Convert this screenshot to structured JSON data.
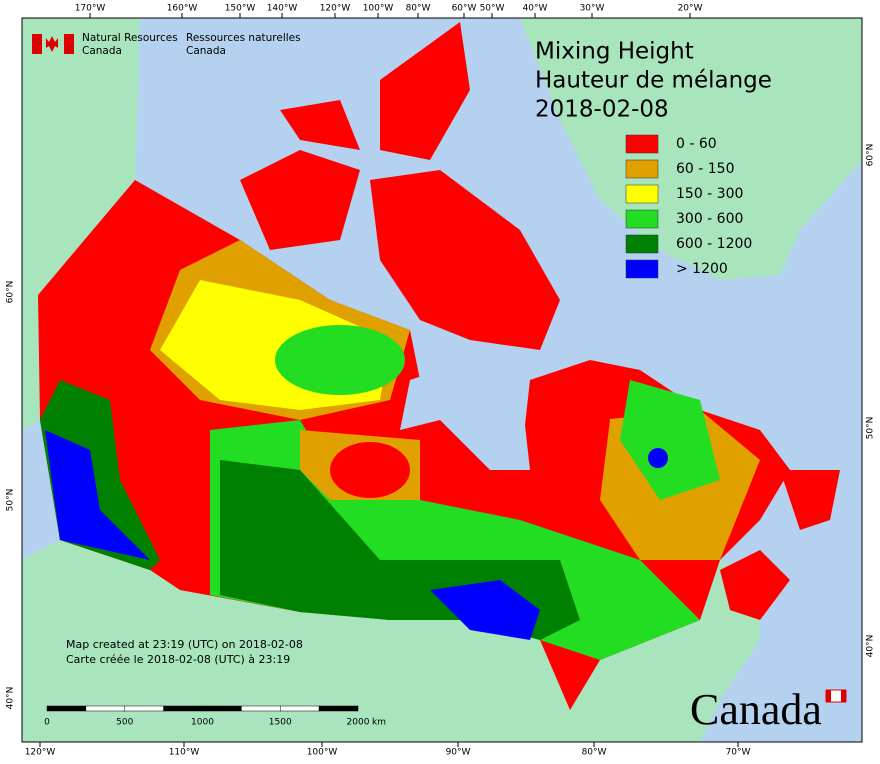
{
  "header": {
    "agency_en": [
      "Natural Resources",
      "Canada"
    ],
    "agency_fr": [
      "Ressources naturelles",
      "Canada"
    ]
  },
  "title": [
    "Mixing Height",
    "Hauteur de mélange",
    "2018-02-08"
  ],
  "legend": [
    {
      "label": "0 - 60",
      "color": "#ff0000"
    },
    {
      "label": "60 - 150",
      "color": "#e0a000"
    },
    {
      "label": "150 - 300",
      "color": "#ffff00"
    },
    {
      "label": "300 - 600",
      "color": "#22dd22"
    },
    {
      "label": "600 - 1200",
      "color": "#008000"
    },
    {
      "label": "> 1200",
      "color": "#0000ff"
    }
  ],
  "top_longitudes": [
    "170°W",
    "160°W",
    "150°W",
    "140°W",
    "120°W",
    "100°W",
    "80°W",
    "60°W",
    "50°W",
    "40°W",
    "30°W",
    "20°W"
  ],
  "bottom_longitudes": [
    "120°W",
    "110°W",
    "100°W",
    "90°W",
    "80°W",
    "70°W"
  ],
  "left_latitudes": [
    "60°N",
    "50°N",
    "40°N"
  ],
  "right_latitudes": [
    "60°N",
    "50°N",
    "40°N"
  ],
  "scale_bar": {
    "labels": [
      "0",
      "500",
      "1000",
      "1500",
      "2000"
    ],
    "unit": "km"
  },
  "credit": [
    "Map created at 23:19 (UTC) on 2018-02-08",
    "Carte créée le 2018-02-08 (UTC) à 23:19"
  ],
  "wordmark": "Canada"
}
